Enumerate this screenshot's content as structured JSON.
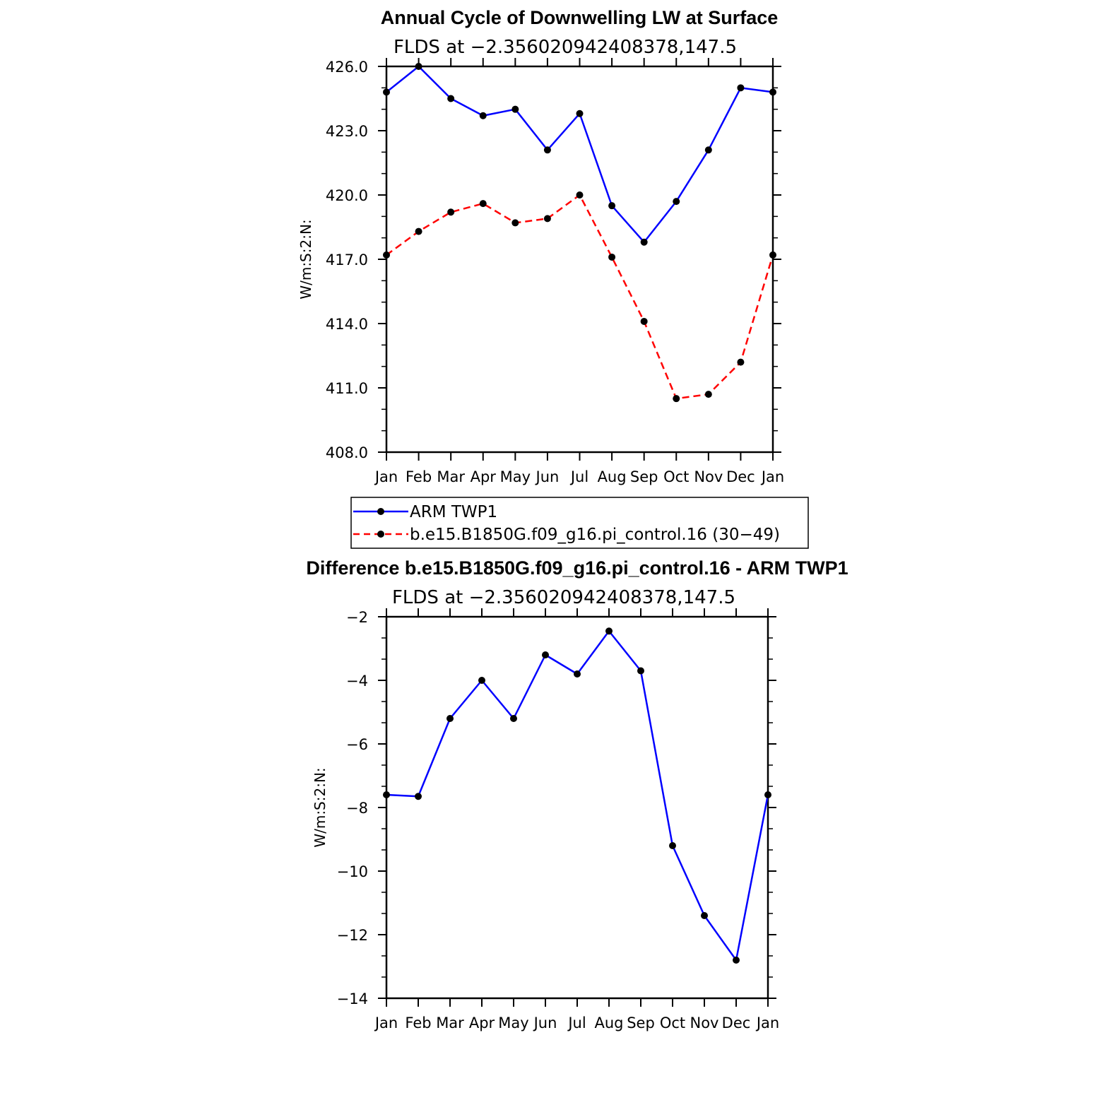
{
  "chart_data": [
    {
      "type": "line",
      "title": "Annual Cycle of Downwelling LW at Surface",
      "subtitle": "FLDS at −2.356020942408378,147.5",
      "ylabel": "W/m:S:2:N:",
      "categories": [
        "Jan",
        "Feb",
        "Mar",
        "Apr",
        "May",
        "Jun",
        "Jul",
        "Aug",
        "Sep",
        "Oct",
        "Nov",
        "Dec",
        "Jan"
      ],
      "ylim": [
        408,
        426
      ],
      "yticks": [
        "408.0",
        "411.0",
        "414.0",
        "417.0",
        "420.0",
        "423.0",
        "426.0"
      ],
      "series": [
        {
          "name": "ARM TWP1",
          "color": "#0000ff",
          "dash": "solid",
          "values": [
            424.8,
            426.0,
            424.5,
            423.7,
            424.0,
            422.1,
            423.8,
            419.5,
            417.8,
            419.7,
            422.1,
            425.0,
            424.8
          ]
        },
        {
          "name": "b.e15.B1850G.f09_g16.pi_control.16 (30−49)",
          "color": "#ff0000",
          "dash": "dashed",
          "values": [
            417.2,
            418.3,
            419.2,
            419.6,
            418.7,
            418.9,
            420.0,
            417.1,
            414.1,
            410.5,
            410.7,
            412.2,
            417.2
          ]
        }
      ],
      "legend": "below"
    },
    {
      "type": "line",
      "title": "Difference b.e15.B1850G.f09_g16.pi_control.16 - ARM TWP1",
      "subtitle": "FLDS at −2.356020942408378,147.5",
      "ylabel": "W/m:S:2:N:",
      "categories": [
        "Jan",
        "Feb",
        "Mar",
        "Apr",
        "May",
        "Jun",
        "Jul",
        "Aug",
        "Sep",
        "Oct",
        "Nov",
        "Dec",
        "Jan"
      ],
      "ylim": [
        -14,
        -2
      ],
      "yticks": [
        "−14",
        "−12",
        "−10",
        "−8",
        "−6",
        "−4",
        "−2"
      ],
      "series": [
        {
          "color": "#0000ff",
          "dash": "solid",
          "values": [
            -7.6,
            -7.65,
            -5.2,
            -4.0,
            -5.2,
            -3.2,
            -3.8,
            -2.45,
            -3.7,
            -9.2,
            -11.4,
            -12.8,
            -7.6
          ]
        }
      ]
    }
  ]
}
